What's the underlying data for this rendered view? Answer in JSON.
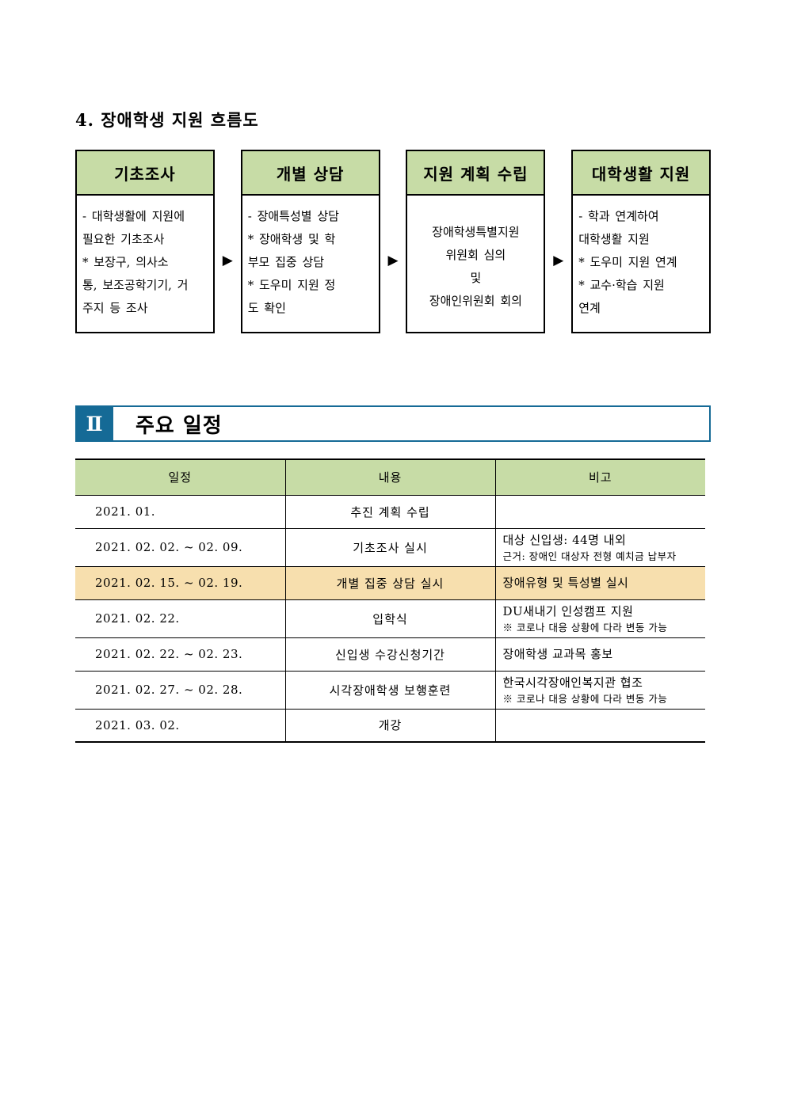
{
  "page": {
    "heading": "4. 장애학생 지원 흐름도"
  },
  "flow": {
    "arrow_icon": "▶",
    "boxes": [
      {
        "title": "기초조사",
        "body": "- 대학생활에 지원에\n필요한 기초조사\n * 보장구, 의사소\n통, 보조공학기기, 거\n주지 등 조사"
      },
      {
        "title": "개별 상담",
        "body": "- 장애특성별 상담\n * 장애학생 및 학\n부모 집중 상담\n * 도우미 지원 정\n도 확인"
      },
      {
        "title": "지원 계획 수립",
        "body": "장애학생특별지원\n위원회 심의\n및\n장애인위원회 회의"
      },
      {
        "title": "대학생활 지원",
        "body": "- 학과 연계하여\n대학생활 지원\n * 도우미 지원 연계\n * 교수·학습 지원\n연계"
      }
    ]
  },
  "section": {
    "number": "Ⅱ",
    "title": "주요 일정"
  },
  "schedule": {
    "headers": [
      "일정",
      "내용",
      "비고"
    ],
    "rows": [
      {
        "date": "2021. 01.",
        "content": "추진 계획 수립",
        "note": "",
        "subnote": ""
      },
      {
        "date": "2021. 02. 02. ~ 02. 09.",
        "content": "기초조사 실시",
        "note": "대상 신입생: 44명 내외",
        "subnote": "근거: 장애인 대상자 전형 예치금 납부자"
      },
      {
        "date": "2021. 02. 15. ~ 02. 19.",
        "content": "개별 집중 상담 실시",
        "note": "장애유형 및 특성별 실시",
        "subnote": ""
      },
      {
        "date": "2021. 02. 22.",
        "content": "입학식",
        "note": "DU새내기 인성캠프 지원",
        "subnote": "※ 코로나 대응 상황에 다라 변동 가능"
      },
      {
        "date": "2021. 02. 22. ~ 02. 23.",
        "content": "신입생 수강신청기간",
        "note": "장애학생 교과목 홍보",
        "subnote": ""
      },
      {
        "date": "2021. 02. 27. ~ 02. 28.",
        "content": "시각장애학생 보행훈련",
        "note": "한국시각장애인복지관 협조",
        "subnote": "※ 코로나 대응 상황에 다라 변동 가능"
      },
      {
        "date": "2021. 03. 02.",
        "content": "개강",
        "note": "",
        "subnote": ""
      }
    ]
  },
  "colors": {
    "header_green": "#c7dca6",
    "highlight_row": "#f7dfae",
    "section_blue": "#156a96",
    "text": "#000000"
  }
}
